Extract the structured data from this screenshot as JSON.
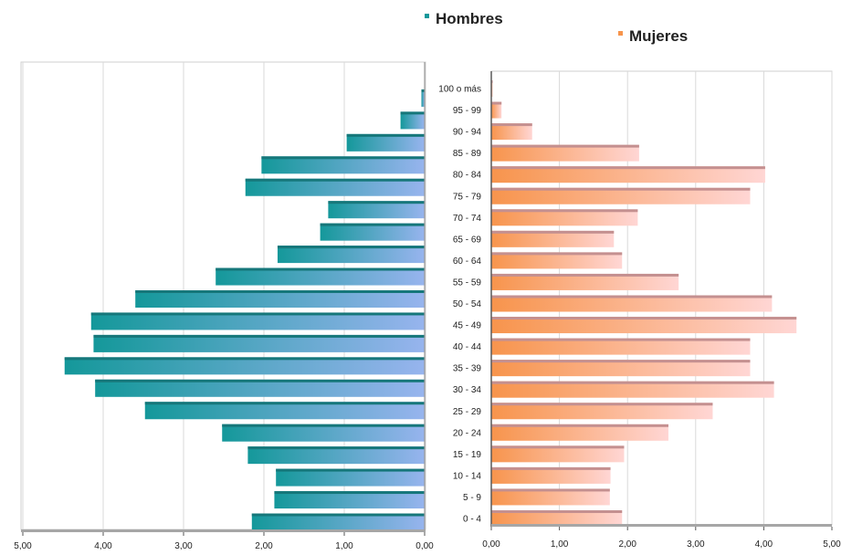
{
  "chart_data": [
    {
      "type": "bar",
      "orientation": "horizontal",
      "title": "Hombres",
      "direction": "right-to-left",
      "xlim": [
        0,
        5
      ],
      "xticks": [
        "5,00",
        "4,00",
        "3,00",
        "2,00",
        "1,00",
        "0,00"
      ],
      "grid": true,
      "categories": [
        "0 - 4",
        "5 - 9",
        "10 - 14",
        "15 - 19",
        "20 - 24",
        "25 - 29",
        "30 - 34",
        "35 - 39",
        "40 - 44",
        "45 - 49",
        "50 - 54",
        "55 - 59",
        "60 - 64",
        "65 - 69",
        "70 - 74",
        "75 - 79",
        "80 - 84",
        "85 - 89",
        "90 - 94",
        "95 - 99",
        "100 o más"
      ],
      "values": [
        2.15,
        1.87,
        1.85,
        2.2,
        2.52,
        3.48,
        4.1,
        4.48,
        4.12,
        4.15,
        3.6,
        2.6,
        1.83,
        1.3,
        1.2,
        2.23,
        2.03,
        0.97,
        0.3,
        0.04,
        0.0
      ],
      "colors": {
        "dark": "#14989a",
        "light": "#97b4ee",
        "top": "#16777a"
      }
    },
    {
      "type": "bar",
      "orientation": "horizontal",
      "title": "Mujeres",
      "direction": "left-to-right",
      "xlim": [
        0,
        5
      ],
      "xticks": [
        "0,00",
        "1,00",
        "2,00",
        "3,00",
        "4,00",
        "5,00"
      ],
      "grid": true,
      "categories": [
        "0 - 4",
        "5 - 9",
        "10 - 14",
        "15 - 19",
        "20 - 24",
        "25 - 29",
        "30 - 34",
        "35 - 39",
        "40 - 44",
        "45 - 49",
        "50 - 54",
        "55 - 59",
        "60 - 64",
        "65 - 69",
        "70 - 74",
        "75 - 79",
        "80 - 84",
        "85 - 89",
        "90 - 94",
        "95 - 99",
        "100 o más"
      ],
      "values": [
        1.92,
        1.74,
        1.75,
        1.95,
        2.6,
        3.25,
        4.15,
        3.8,
        3.8,
        4.48,
        4.12,
        2.75,
        1.92,
        1.8,
        2.15,
        3.8,
        4.02,
        2.17,
        0.6,
        0.15,
        0.02
      ],
      "colors": {
        "dark": "#f7944c",
        "light": "#ffd6d4",
        "top": "#c49090"
      }
    }
  ]
}
